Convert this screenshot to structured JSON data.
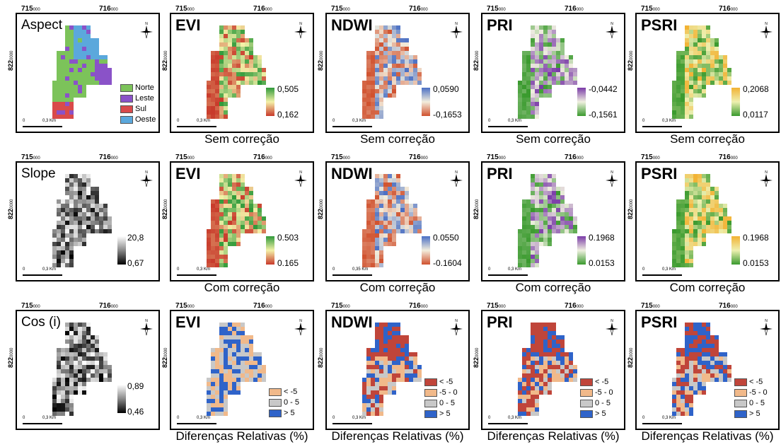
{
  "axis": {
    "x1": "715",
    "x2": "716",
    "sub": "000",
    "y": "822",
    "ysub": "0000"
  },
  "scale": {
    "zero": "0",
    "dist": "0,3 Km",
    "dist_alt": "0,35 Km"
  },
  "north_symbol": "N",
  "captions": {
    "sem": "Sem correção",
    "com": "Com correção",
    "dif": "Diferenças Relativas (%)"
  },
  "rows": [
    {
      "panels": [
        {
          "title": "Aspect",
          "legend": [
            "Norte",
            "Leste",
            "Sul",
            "Oeste"
          ],
          "colors": [
            "#7cc35a",
            "#8a52c8",
            "#d94a4a",
            "#5ba8dc"
          ]
        },
        {
          "title": "EVI",
          "max": "0,505",
          "min": "0,162",
          "ramp": [
            "#2f9a3a",
            "#f4f1a8",
            "#c83a2b"
          ]
        },
        {
          "title": "NDWI",
          "max": "0,0590",
          "min": "-0,1653",
          "ramp": [
            "#4a6fc4",
            "#f3eedd",
            "#d0512e"
          ]
        },
        {
          "title": "PRI",
          "max": "-0,0442",
          "min": "-0,1561",
          "ramp": [
            "#7a3aa8",
            "#f0f0e0",
            "#3a9a2e"
          ]
        },
        {
          "title": "PSRI",
          "max": "0,2068",
          "min": "0,0117",
          "ramp": [
            "#f2b233",
            "#eef0b0",
            "#3a9a2e"
          ]
        }
      ]
    },
    {
      "panels": [
        {
          "title": "Slope",
          "max": "20,8",
          "min": "0,67",
          "ramp": [
            "#ffffff",
            "#888888",
            "#000000"
          ]
        },
        {
          "title": "EVI",
          "max": "0.503",
          "min": "0.165",
          "ramp": [
            "#2f9a3a",
            "#f4f1a8",
            "#c83a2b"
          ]
        },
        {
          "title": "NDWI",
          "max": "0.0550",
          "min": "-0.1604",
          "ramp": [
            "#4a6fc4",
            "#f3eedd",
            "#d0512e"
          ]
        },
        {
          "title": "PRI",
          "max": "0.1968",
          "min": "0.0153",
          "ramp": [
            "#7a3aa8",
            "#f0f0e0",
            "#3a9a2e"
          ]
        },
        {
          "title": "PSRI",
          "max": "0.1968",
          "min": "0.0153",
          "ramp": [
            "#f2b233",
            "#eef0b0",
            "#3a9a2e"
          ]
        }
      ]
    },
    {
      "panels": [
        {
          "title": "Cos (i)",
          "max": "0,89",
          "min": "0,46",
          "ramp": [
            "#ffffff",
            "#888888",
            "#000000"
          ]
        },
        {
          "title": "EVI",
          "legend": [
            "< -5",
            "0 - 5",
            "> 5"
          ],
          "colors": [
            "#f1b98a",
            "#c8c8c8",
            "#2f63c9"
          ]
        },
        {
          "title": "NDWI",
          "legend": [
            "< -5",
            "-5 - 0",
            "0 - 5",
            "> 5"
          ],
          "colors": [
            "#c0453a",
            "#f1b98a",
            "#c8c8c8",
            "#2f63c9"
          ]
        },
        {
          "title": "PRI",
          "legend": [
            "< -5",
            "-5 - 0",
            "0 - 5",
            "> 5"
          ],
          "colors": [
            "#c0453a",
            "#f1b98a",
            "#c8c8c8",
            "#2f63c9"
          ]
        },
        {
          "title": "PSRI",
          "legend": [
            "< -5",
            "-5 - 0",
            "0 - 5",
            "> 5"
          ],
          "colors": [
            "#c0453a",
            "#f1b98a",
            "#c8c8c8",
            "#2f63c9"
          ]
        }
      ]
    }
  ]
}
